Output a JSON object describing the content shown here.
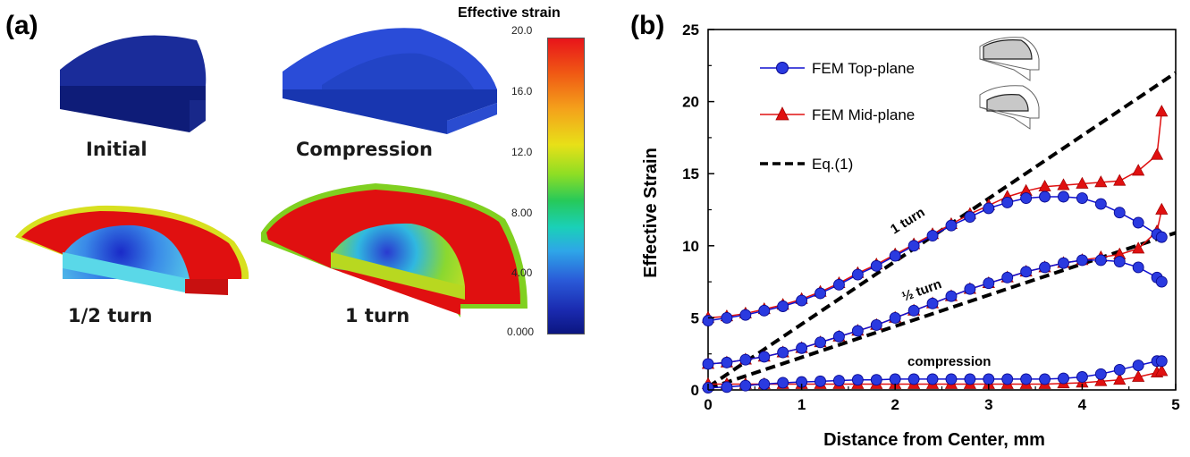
{
  "panel_a": {
    "label": "(a)",
    "views": {
      "initial": "Initial",
      "compression": "Compression",
      "half_turn": "1/2 turn",
      "one_turn": "1 turn"
    },
    "colorbar": {
      "title": "Effective strain",
      "ticks": [
        "20.0",
        "16.0",
        "12.0",
        "8.00",
        "4.00",
        "0.000"
      ]
    }
  },
  "panel_b": {
    "label": "(b)",
    "legend": {
      "top": "FEM Top-plane",
      "mid": "FEM Mid-plane",
      "eq": "Eq.(1)"
    },
    "annotations": {
      "one_turn": "1 turn",
      "half_turn": "½ turn",
      "compression": "compression"
    },
    "colors": {
      "top": "#1010d0",
      "mid": "#e01010",
      "eq": "#000000"
    }
  },
  "chart_data": {
    "type": "line",
    "xlabel": "Distance from Center, mm",
    "ylabel": "Effective Strain",
    "xlim": [
      0,
      5
    ],
    "ylim": [
      0,
      25
    ],
    "xticks": [
      "0",
      "1",
      "2",
      "3",
      "4",
      "5"
    ],
    "yticks": [
      "0",
      "5",
      "10",
      "15",
      "20",
      "25"
    ],
    "grid": false,
    "legend_position": "top-left",
    "series": [
      {
        "name": "FEM Top-plane",
        "group": "1 turn",
        "marker": "circle",
        "x": [
          0,
          0.2,
          0.4,
          0.6,
          0.8,
          1.0,
          1.2,
          1.4,
          1.6,
          1.8,
          2.0,
          2.2,
          2.4,
          2.6,
          2.8,
          3.0,
          3.2,
          3.4,
          3.6,
          3.8,
          4.0,
          4.2,
          4.4,
          4.6,
          4.8,
          4.85
        ],
        "y": [
          4.8,
          5.0,
          5.2,
          5.5,
          5.8,
          6.2,
          6.7,
          7.3,
          8.0,
          8.6,
          9.3,
          10.0,
          10.7,
          11.4,
          12.0,
          12.6,
          13.0,
          13.3,
          13.4,
          13.4,
          13.3,
          12.9,
          12.3,
          11.6,
          10.8,
          10.6
        ]
      },
      {
        "name": "FEM Mid-plane",
        "group": "1 turn",
        "marker": "triangle",
        "x": [
          0,
          0.2,
          0.4,
          0.6,
          0.8,
          1.0,
          1.2,
          1.4,
          1.6,
          1.8,
          2.0,
          2.2,
          2.4,
          2.6,
          2.8,
          3.0,
          3.2,
          3.4,
          3.6,
          3.8,
          4.0,
          4.2,
          4.4,
          4.6,
          4.8,
          4.85
        ],
        "y": [
          5.0,
          5.1,
          5.3,
          5.6,
          5.9,
          6.3,
          6.8,
          7.4,
          8.1,
          8.7,
          9.4,
          10.1,
          10.8,
          11.5,
          12.2,
          12.8,
          13.4,
          13.8,
          14.1,
          14.2,
          14.3,
          14.4,
          14.5,
          15.2,
          16.3,
          19.3
        ]
      },
      {
        "name": "FEM Top-plane",
        "group": "1/2 turn",
        "marker": "circle",
        "x": [
          0,
          0.2,
          0.4,
          0.6,
          0.8,
          1.0,
          1.2,
          1.4,
          1.6,
          1.8,
          2.0,
          2.2,
          2.4,
          2.6,
          2.8,
          3.0,
          3.2,
          3.4,
          3.6,
          3.8,
          4.0,
          4.2,
          4.4,
          4.6,
          4.8,
          4.85
        ],
        "y": [
          1.8,
          1.9,
          2.1,
          2.3,
          2.6,
          2.9,
          3.3,
          3.7,
          4.1,
          4.5,
          5.0,
          5.5,
          6.0,
          6.5,
          7.0,
          7.4,
          7.8,
          8.2,
          8.5,
          8.8,
          9.0,
          9.0,
          8.9,
          8.5,
          7.8,
          7.5
        ]
      },
      {
        "name": "FEM Mid-plane",
        "group": "1/2 turn",
        "marker": "triangle",
        "x": [
          0,
          0.2,
          0.4,
          0.6,
          0.8,
          1.0,
          1.2,
          1.4,
          1.6,
          1.8,
          2.0,
          2.2,
          2.4,
          2.6,
          2.8,
          3.0,
          3.2,
          3.4,
          3.6,
          3.8,
          4.0,
          4.2,
          4.4,
          4.6,
          4.8,
          4.85
        ],
        "y": [
          1.8,
          1.9,
          2.1,
          2.3,
          2.6,
          2.9,
          3.3,
          3.7,
          4.1,
          4.5,
          5.0,
          5.5,
          6.0,
          6.5,
          7.0,
          7.4,
          7.8,
          8.2,
          8.5,
          8.8,
          9.0,
          9.2,
          9.4,
          9.8,
          11.0,
          12.5
        ]
      },
      {
        "name": "FEM Top-plane",
        "group": "compression",
        "marker": "circle",
        "x": [
          0,
          0.2,
          0.4,
          0.6,
          0.8,
          1.0,
          1.2,
          1.4,
          1.6,
          1.8,
          2.0,
          2.2,
          2.4,
          2.6,
          2.8,
          3.0,
          3.2,
          3.4,
          3.6,
          3.8,
          4.0,
          4.2,
          4.4,
          4.6,
          4.8,
          4.85
        ],
        "y": [
          0.15,
          0.2,
          0.3,
          0.4,
          0.5,
          0.55,
          0.6,
          0.65,
          0.7,
          0.7,
          0.75,
          0.75,
          0.75,
          0.75,
          0.75,
          0.75,
          0.75,
          0.75,
          0.75,
          0.8,
          0.9,
          1.1,
          1.4,
          1.7,
          2.0,
          2.0
        ]
      },
      {
        "name": "FEM Mid-plane",
        "group": "compression",
        "marker": "triangle",
        "x": [
          0,
          0.2,
          0.4,
          0.6,
          0.8,
          1.0,
          1.2,
          1.4,
          1.6,
          1.8,
          2.0,
          2.2,
          2.4,
          2.6,
          2.8,
          3.0,
          3.2,
          3.4,
          3.6,
          3.8,
          4.0,
          4.2,
          4.4,
          4.6,
          4.8,
          4.85
        ],
        "y": [
          0.4,
          0.4,
          0.4,
          0.4,
          0.4,
          0.4,
          0.4,
          0.4,
          0.4,
          0.4,
          0.4,
          0.4,
          0.4,
          0.4,
          0.4,
          0.4,
          0.4,
          0.4,
          0.4,
          0.45,
          0.5,
          0.6,
          0.7,
          0.9,
          1.2,
          1.3
        ]
      },
      {
        "name": "Eq.(1)",
        "group": "1 turn",
        "style": "dashed",
        "x": [
          0,
          5
        ],
        "y": [
          0.2,
          22
        ]
      },
      {
        "name": "Eq.(1)",
        "group": "1/2 turn",
        "style": "dashed",
        "x": [
          0,
          5
        ],
        "y": [
          0.1,
          10.9
        ]
      }
    ]
  }
}
